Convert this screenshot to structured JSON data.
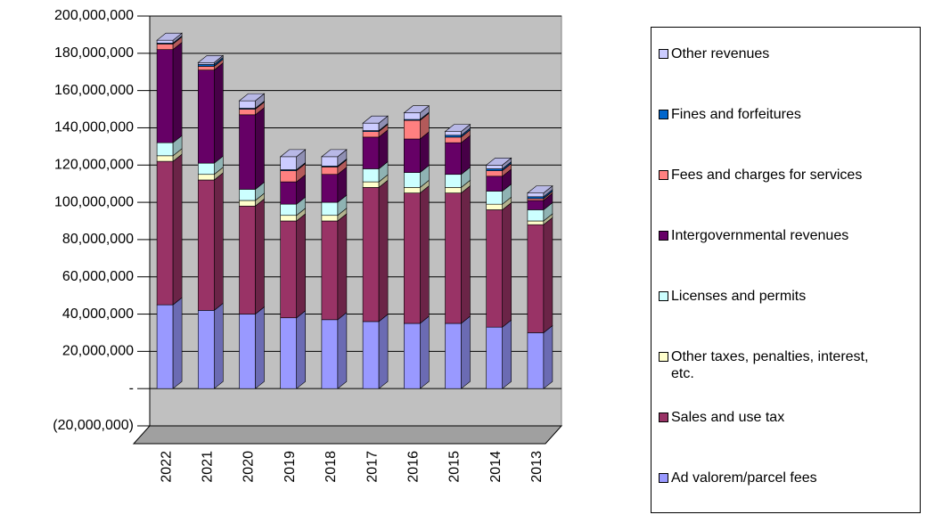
{
  "chart_data": {
    "type": "bar3d-stacked",
    "categories": [
      "2022",
      "2021",
      "2020",
      "2019",
      "2018",
      "2017",
      "2016",
      "2015",
      "2014",
      "2013"
    ],
    "series": [
      {
        "name": "Ad valorem/parcel fees",
        "color": "#9999ff",
        "values": [
          45000000,
          42000000,
          40000000,
          38000000,
          37000000,
          36000000,
          35000000,
          35000000,
          33000000,
          30000000
        ]
      },
      {
        "name": "Sales and use tax",
        "color": "#993366",
        "values": [
          77000000,
          70000000,
          58000000,
          52000000,
          53000000,
          72000000,
          70000000,
          70000000,
          63000000,
          58000000
        ]
      },
      {
        "name": "Other taxes, penalties, interest, etc.",
        "color": "#ffffcc",
        "values": [
          3000000,
          3000000,
          3000000,
          3000000,
          3000000,
          3000000,
          3000000,
          3000000,
          3000000,
          2000000
        ]
      },
      {
        "name": "Licenses and permits",
        "color": "#ccffff",
        "values": [
          7000000,
          6000000,
          6000000,
          6000000,
          7000000,
          7000000,
          8000000,
          7000000,
          7000000,
          6000000
        ]
      },
      {
        "name": "Intergovernmental revenues",
        "color": "#660066",
        "values": [
          50000000,
          50000000,
          40000000,
          12000000,
          15000000,
          17000000,
          18000000,
          17000000,
          8000000,
          5000000
        ]
      },
      {
        "name": "Fees and charges for services",
        "color": "#ff8080",
        "values": [
          3000000,
          2000000,
          3000000,
          6000000,
          4000000,
          3000000,
          10000000,
          3000000,
          3000000,
          1000000
        ]
      },
      {
        "name": "Fines and forfeitures",
        "color": "#0066cc",
        "values": [
          500000,
          1000000,
          500000,
          500000,
          500000,
          500000,
          500000,
          1000000,
          1000000,
          1000000
        ]
      },
      {
        "name": "Other revenues",
        "color": "#ccccff",
        "values": [
          1500000,
          1000000,
          4000000,
          7000000,
          5000000,
          4000000,
          3500000,
          2000000,
          2000000,
          2000000
        ]
      }
    ],
    "ylim": [
      -20000000,
      200000000
    ],
    "yticks": [
      {
        "value": -20000000,
        "label": "(20,000,000)"
      },
      {
        "value": 0,
        "label": "-"
      },
      {
        "value": 20000000,
        "label": "20,000,000"
      },
      {
        "value": 40000000,
        "label": "40,000,000"
      },
      {
        "value": 60000000,
        "label": "60,000,000"
      },
      {
        "value": 80000000,
        "label": "80,000,000"
      },
      {
        "value": 100000000,
        "label": "100,000,000"
      },
      {
        "value": 120000000,
        "label": "120,000,000"
      },
      {
        "value": 140000000,
        "label": "140,000,000"
      },
      {
        "value": 160000000,
        "label": "160,000,000"
      },
      {
        "value": 180000000,
        "label": "180,000,000"
      },
      {
        "value": 200000000,
        "label": "200,000,000"
      }
    ],
    "grid": true
  }
}
